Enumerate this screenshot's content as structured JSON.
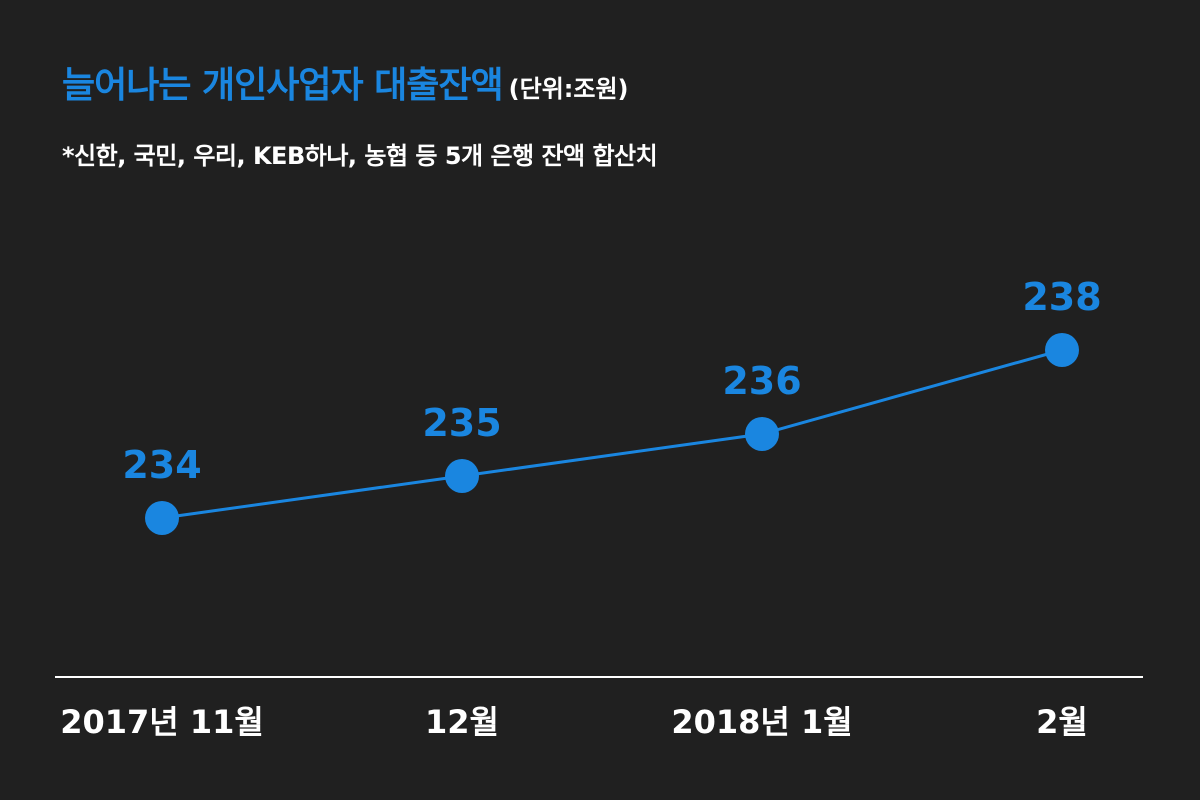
{
  "header": {
    "title": "늘어나는 개인사업자 대출잔액",
    "unit": "(단위:조원)",
    "note": "*신한, 국민, 우리, KEB하나, 농협 등 5개 은행 잔액 합산치"
  },
  "colors": {
    "background": "#202020",
    "accent": "#1a86e0",
    "axis": "#ffffff",
    "text": "#ffffff"
  },
  "chart_data": {
    "type": "line",
    "title": "늘어나는 개인사업자 대출잔액",
    "unit": "(단위:조원)",
    "categories": [
      "2017년 11월",
      "12월",
      "2018년 1월",
      "2월"
    ],
    "series": [
      {
        "values": [
          234,
          235,
          236,
          238
        ]
      }
    ],
    "data_labels": [
      "234",
      "235",
      "236",
      "238"
    ],
    "grid": false,
    "legend": "none"
  }
}
